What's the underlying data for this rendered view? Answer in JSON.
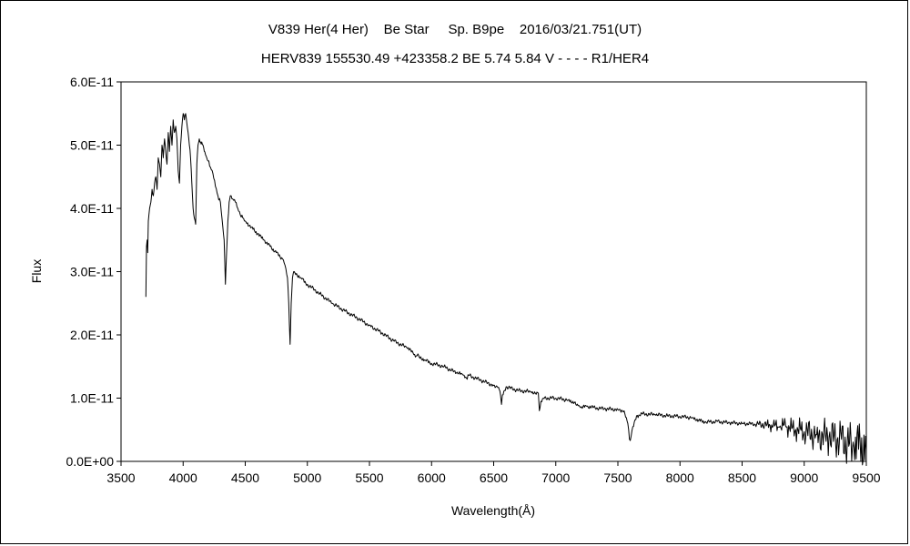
{
  "chart_data": {
    "type": "line",
    "title_line1": "V839 Her(4 Her)    Be Star     Sp. B9pe    2016/03/21.751(UT)",
    "title_line2": "HERV839 155530.49 +423358.2 BE 5.74 5.84 V - - - - R1/HER4",
    "xlabel": "Wavelength(Å)",
    "ylabel": "Flux",
    "xlim": [
      3500,
      9500
    ],
    "ylim": [
      0,
      6e-11
    ],
    "xticks": [
      3500,
      4000,
      4500,
      5000,
      5500,
      6000,
      6500,
      7000,
      7500,
      8000,
      8500,
      9000,
      9500
    ],
    "xtick_labels": [
      "3500",
      "4000",
      "4500",
      "5000",
      "5500",
      "6000",
      "6500",
      "7000",
      "7500",
      "8000",
      "8500",
      "9000",
      "9500"
    ],
    "yticks": [
      0,
      1e-11,
      2e-11,
      3e-11,
      4e-11,
      5e-11,
      6e-11
    ],
    "ytick_labels": [
      "0.0E+00",
      "1.0E-11",
      "2.0E-11",
      "3.0E-11",
      "4.0E-11",
      "5.0E-11",
      "6.0E-11"
    ],
    "grid": false,
    "legend": "none",
    "line_color": "#000000",
    "series": [
      {
        "x": [
          3700,
          3705,
          3710,
          3715,
          3720,
          3730,
          3740,
          3750,
          3760,
          3770,
          3780,
          3790,
          3800,
          3810,
          3820,
          3830,
          3840,
          3850,
          3860,
          3870,
          3880,
          3890,
          3900,
          3910,
          3920,
          3930,
          3940,
          3950,
          3960,
          3970,
          3980,
          3990,
          4000,
          4010,
          4020,
          4030,
          4040,
          4050,
          4060,
          4070,
          4080,
          4090,
          4101,
          4110,
          4120,
          4130,
          4140,
          4150,
          4160,
          4170,
          4180,
          4190,
          4200,
          4220,
          4240,
          4260,
          4280,
          4300,
          4320,
          4330,
          4340,
          4350,
          4360,
          4370,
          4380,
          4400,
          4420,
          4440,
          4460,
          4480,
          4500,
          4550,
          4600,
          4650,
          4700,
          4750,
          4800,
          4820,
          4840,
          4850,
          4861,
          4870,
          4880,
          4890,
          4900,
          4950,
          5000,
          5100,
          5200,
          5300,
          5400,
          5500,
          5600,
          5700,
          5800,
          5850,
          5870,
          5890,
          5900,
          5950,
          6000,
          6100,
          6200,
          6250,
          6280,
          6300,
          6400,
          6500,
          6540,
          6555,
          6563,
          6570,
          6600,
          6700,
          6800,
          6860,
          6868,
          6880,
          6900,
          7000,
          7100,
          7150,
          7180,
          7200,
          7250,
          7300,
          7400,
          7500,
          7550,
          7580,
          7593,
          7600,
          7620,
          7650,
          7700,
          7800,
          7900,
          8000,
          8100,
          8150,
          8200,
          8300,
          8400,
          8500,
          8600,
          8700,
          8750,
          8800,
          8850,
          8900,
          8950,
          9000,
          9100,
          9200,
          9300,
          9400,
          9450,
          9500
        ],
        "y": [
          2.6e-11,
          3.4e-11,
          3.5e-11,
          3.3e-11,
          3.8e-11,
          4e-11,
          4.1e-11,
          4.3e-11,
          4.2e-11,
          4.4e-11,
          4.5e-11,
          4.3e-11,
          4.8e-11,
          4.7e-11,
          4.5e-11,
          5e-11,
          4.8e-11,
          5.1e-11,
          4.9e-11,
          4.7e-11,
          5.2e-11,
          4.9e-11,
          5.3e-11,
          5e-11,
          5.4e-11,
          5.2e-11,
          5.3e-11,
          5.1e-11,
          4.6e-11,
          4.4e-11,
          5e-11,
          5.3e-11,
          5.5e-11,
          5.4e-11,
          5.5e-11,
          5.35e-11,
          5.2e-11,
          5e-11,
          4.8e-11,
          4.4e-11,
          4e-11,
          3.85e-11,
          3.75e-11,
          4.7e-11,
          5e-11,
          5.1e-11,
          5.05e-11,
          5.05e-11,
          5e-11,
          4.9e-11,
          4.85e-11,
          4.8e-11,
          4.75e-11,
          4.65e-11,
          4.55e-11,
          4.35e-11,
          4.2e-11,
          4.1e-11,
          3.7e-11,
          3.5e-11,
          2.8e-11,
          3.3e-11,
          3.8e-11,
          4.1e-11,
          4.2e-11,
          4.15e-11,
          4.1e-11,
          4e-11,
          3.9e-11,
          3.85e-11,
          3.8e-11,
          3.7e-11,
          3.6e-11,
          3.5e-11,
          3.4e-11,
          3.3e-11,
          3.2e-11,
          3.1e-11,
          2.9e-11,
          2.5e-11,
          1.85e-11,
          2.5e-11,
          2.9e-11,
          3e-11,
          2.98e-11,
          2.9e-11,
          2.8e-11,
          2.65e-11,
          2.5e-11,
          2.38e-11,
          2.27e-11,
          2.15e-11,
          2.03e-11,
          1.9e-11,
          1.8e-11,
          1.72e-11,
          1.65e-11,
          1.7e-11,
          1.65e-11,
          1.6e-11,
          1.55e-11,
          1.5e-11,
          1.4e-11,
          1.37e-11,
          1.32e-11,
          1.36e-11,
          1.28e-11,
          1.2e-11,
          1.17e-11,
          1.05e-11,
          9e-12,
          1.05e-11,
          1.18e-11,
          1.12e-11,
          1.1e-11,
          1.08e-11,
          8e-12,
          9.5e-12,
          1e-11,
          1e-11,
          9.7e-12,
          9.3e-12,
          8.8e-12,
          8.5e-12,
          8.7e-12,
          8.5e-12,
          8.3e-12,
          8.2e-12,
          8e-12,
          6e-12,
          3.5e-12,
          3.3e-12,
          5.5e-12,
          7.2e-12,
          7.5e-12,
          7.4e-12,
          7.2e-12,
          7.1e-12,
          6.9e-12,
          6.5e-12,
          6.2e-12,
          6.3e-12,
          6.1e-12,
          6e-12,
          5.9e-12,
          5.8e-12,
          5.6e-12,
          5.4e-12,
          5.6e-12,
          5.2e-12,
          5e-12,
          4.7e-12,
          4.2e-12,
          3.8e-12,
          3.5e-12,
          2.2e-12,
          3e-12,
          1.8e-12
        ]
      }
    ]
  }
}
